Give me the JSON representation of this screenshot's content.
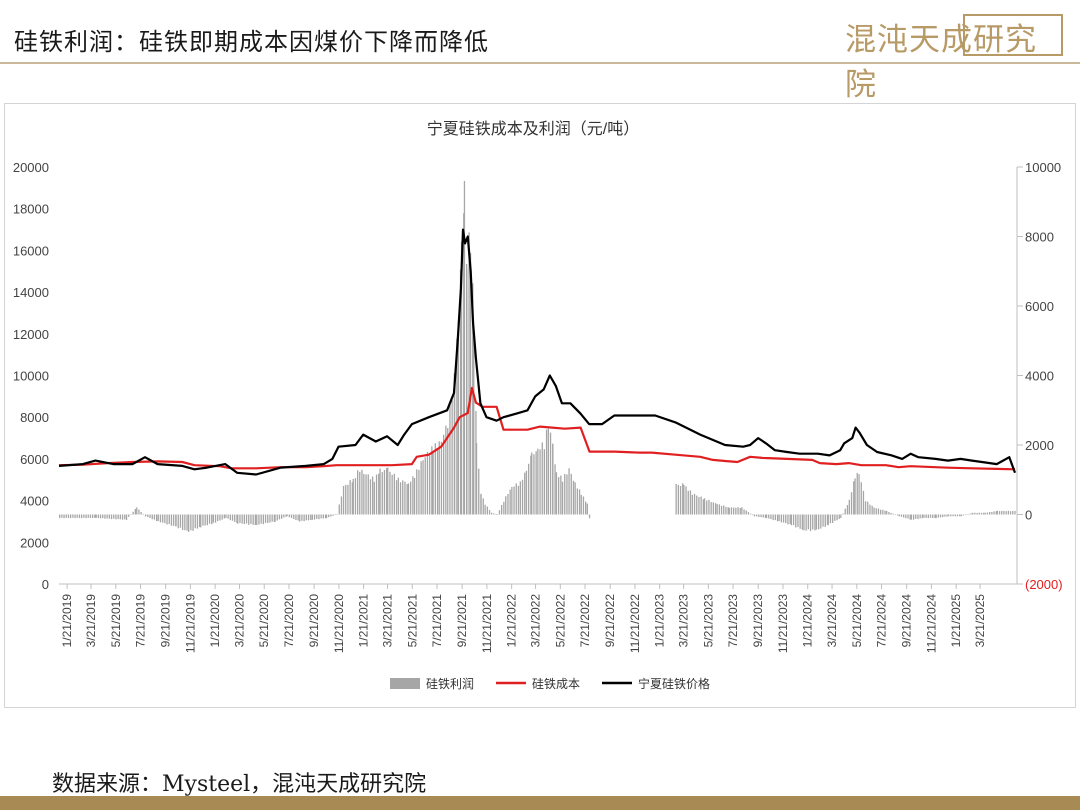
{
  "header": {
    "title": "硅铁利润：硅铁即期成本因煤价下降而降低"
  },
  "logo": {
    "text": "混沌天成研究院"
  },
  "footer": {
    "source": "数据来源：Mysteel，混沌天成研究院"
  },
  "colors": {
    "profit": "#a6a6a6",
    "cost": "#e02020",
    "price": "#000000",
    "brand": "#b89a67"
  },
  "chart_data": {
    "type": "bar+line",
    "title": "宁夏硅铁成本及利润（元/吨）",
    "x_tick_labels": [
      "1/21/2019",
      "3/21/2019",
      "5/21/2019",
      "7/21/2019",
      "9/21/2019",
      "11/21/2019",
      "1/21/2020",
      "3/21/2020",
      "5/21/2020",
      "7/21/2020",
      "9/21/2020",
      "11/21/2020",
      "1/21/2021",
      "3/21/2021",
      "5/21/2021",
      "7/21/2021",
      "9/21/2021",
      "11/21/2021",
      "1/21/2022",
      "3/21/2022",
      "5/21/2022",
      "7/21/2022",
      "9/21/2022",
      "11/21/2022",
      "1/21/2023",
      "3/21/2023",
      "5/21/2023",
      "7/21/2023",
      "9/21/2023",
      "11/21/2023",
      "1/21/2024",
      "3/21/2024",
      "5/21/2024",
      "7/21/2024",
      "9/21/2024",
      "11/21/2024",
      "1/21/2025",
      "3/21/2025"
    ],
    "x_range": [
      "2019-01-01",
      "2025-06-20"
    ],
    "y_left": {
      "min": 0,
      "max": 20000,
      "ticks": [
        "0",
        "2000",
        "4000",
        "6000",
        "8000",
        "10000",
        "12000",
        "14000",
        "16000",
        "18000",
        "20000"
      ]
    },
    "y_right": {
      "min": -2000,
      "max": 10000,
      "ticks": [
        "(2000)",
        "0",
        "2000",
        "4000",
        "6000",
        "8000",
        "10000"
      ]
    },
    "series": [
      {
        "name": "硅铁利润",
        "kind": "bar",
        "axis": "right",
        "color": "#a6a6a6",
        "points": [
          [
            "2019-01-01",
            -100
          ],
          [
            "2019-04-01",
            -100
          ],
          [
            "2019-06-15",
            -150
          ],
          [
            "2019-07-10",
            200
          ],
          [
            "2019-08-01",
            -50
          ],
          [
            "2019-09-01",
            -200
          ],
          [
            "2019-10-15",
            -350
          ],
          [
            "2019-11-15",
            -500
          ],
          [
            "2019-12-15",
            -350
          ],
          [
            "2020-01-15",
            -250
          ],
          [
            "2020-02-15",
            -100
          ],
          [
            "2020-03-15",
            -250
          ],
          [
            "2020-05-01",
            -300
          ],
          [
            "2020-06-15",
            -200
          ],
          [
            "2020-07-15",
            -50
          ],
          [
            "2020-08-15",
            -200
          ],
          [
            "2020-09-15",
            -150
          ],
          [
            "2020-10-20",
            -100
          ],
          [
            "2020-11-15",
            0
          ],
          [
            "2020-12-01",
            800
          ],
          [
            "2020-12-25",
            1000
          ],
          [
            "2021-01-10",
            1300
          ],
          [
            "2021-01-20",
            1200
          ],
          [
            "2021-02-15",
            1000
          ],
          [
            "2021-03-01",
            1250
          ],
          [
            "2021-03-20",
            1300
          ],
          [
            "2021-04-15",
            1000
          ],
          [
            "2021-05-10",
            900
          ],
          [
            "2021-05-25",
            1100
          ],
          [
            "2021-06-15",
            1600
          ],
          [
            "2021-07-10",
            1900
          ],
          [
            "2021-07-25",
            2000
          ],
          [
            "2021-08-15",
            2600
          ],
          [
            "2021-09-01",
            4000
          ],
          [
            "2021-09-10",
            5500
          ],
          [
            "2021-09-18",
            7500
          ],
          [
            "2021-09-25",
            9200
          ],
          [
            "2021-10-01",
            7500
          ],
          [
            "2021-10-10",
            8000
          ],
          [
            "2021-10-18",
            5600
          ],
          [
            "2021-10-25",
            2000
          ],
          [
            "2021-11-05",
            600
          ],
          [
            "2021-11-15",
            300
          ],
          [
            "2021-12-01",
            50
          ],
          [
            "2021-12-15",
            0
          ],
          [
            "2022-01-05",
            500
          ],
          [
            "2022-01-20",
            800
          ],
          [
            "2022-02-10",
            900
          ],
          [
            "2022-02-25",
            1300
          ],
          [
            "2022-03-10",
            1700
          ],
          [
            "2022-03-25",
            1900
          ],
          [
            "2022-04-10",
            2000
          ],
          [
            "2022-04-20",
            2600
          ],
          [
            "2022-05-01",
            2000
          ],
          [
            "2022-05-10",
            1200
          ],
          [
            "2022-05-25",
            1000
          ],
          [
            "2022-06-10",
            1300
          ],
          [
            "2022-06-25",
            900
          ],
          [
            "2022-07-10",
            600
          ],
          [
            "2022-07-25",
            300
          ],
          [
            "2022-07-31",
            -150
          ],
          [
            "2023-03-01",
            850
          ],
          [
            "2023-03-20",
            850
          ],
          [
            "2023-04-10",
            600
          ],
          [
            "2023-05-10",
            450
          ],
          [
            "2023-06-10",
            300
          ],
          [
            "2023-07-10",
            200
          ],
          [
            "2023-08-10",
            200
          ],
          [
            "2023-09-10",
            -50
          ],
          [
            "2023-10-10",
            -100
          ],
          [
            "2023-11-10",
            -200
          ],
          [
            "2023-12-10",
            -300
          ],
          [
            "2024-01-10",
            -450
          ],
          [
            "2024-02-10",
            -450
          ],
          [
            "2024-03-10",
            -300
          ],
          [
            "2024-04-10",
            -100
          ],
          [
            "2024-05-01",
            400
          ],
          [
            "2024-05-15",
            1100
          ],
          [
            "2024-05-25",
            1200
          ],
          [
            "2024-06-10",
            400
          ],
          [
            "2024-07-01",
            200
          ],
          [
            "2024-08-01",
            100
          ],
          [
            "2024-09-01",
            -50
          ],
          [
            "2024-10-01",
            -150
          ],
          [
            "2024-11-01",
            -100
          ],
          [
            "2024-12-01",
            -100
          ],
          [
            "2025-01-01",
            -50
          ],
          [
            "2025-02-01",
            -50
          ],
          [
            "2025-03-01",
            50
          ],
          [
            "2025-04-01",
            50
          ],
          [
            "2025-05-01",
            100
          ],
          [
            "2025-06-15",
            100
          ]
        ]
      },
      {
        "name": "硅铁成本",
        "kind": "line",
        "axis": "left",
        "color": "#e02020",
        "points": [
          [
            "2019-01-01",
            5700
          ],
          [
            "2019-03-01",
            5720
          ],
          [
            "2019-05-01",
            5800
          ],
          [
            "2019-07-01",
            5850
          ],
          [
            "2019-09-01",
            5880
          ],
          [
            "2019-11-01",
            5850
          ],
          [
            "2019-12-01",
            5700
          ],
          [
            "2020-02-01",
            5650
          ],
          [
            "2020-03-01",
            5550
          ],
          [
            "2020-05-01",
            5550
          ],
          [
            "2020-07-01",
            5600
          ],
          [
            "2020-09-01",
            5600
          ],
          [
            "2020-10-15",
            5650
          ],
          [
            "2020-11-15",
            5700
          ],
          [
            "2021-01-01",
            5700
          ],
          [
            "2021-04-01",
            5700
          ],
          [
            "2021-05-20",
            5750
          ],
          [
            "2021-06-01",
            6100
          ],
          [
            "2021-07-01",
            6200
          ],
          [
            "2021-08-01",
            6600
          ],
          [
            "2021-09-01",
            7500
          ],
          [
            "2021-09-15",
            8000
          ],
          [
            "2021-10-05",
            8200
          ],
          [
            "2021-10-15",
            9400
          ],
          [
            "2021-10-25",
            8700
          ],
          [
            "2021-11-10",
            8500
          ],
          [
            "2021-12-15",
            8500
          ],
          [
            "2022-01-01",
            7400
          ],
          [
            "2022-03-01",
            7400
          ],
          [
            "2022-04-01",
            7550
          ],
          [
            "2022-05-01",
            7500
          ],
          [
            "2022-06-01",
            7450
          ],
          [
            "2022-07-10",
            7500
          ],
          [
            "2022-08-01",
            6350
          ],
          [
            "2022-10-01",
            6350
          ],
          [
            "2022-12-01",
            6300
          ],
          [
            "2023-01-01",
            6300
          ],
          [
            "2023-03-01",
            6200
          ],
          [
            "2023-05-01",
            6100
          ],
          [
            "2023-06-01",
            5950
          ],
          [
            "2023-07-01",
            5900
          ],
          [
            "2023-08-01",
            5850
          ],
          [
            "2023-09-01",
            6100
          ],
          [
            "2023-10-01",
            6050
          ],
          [
            "2023-12-01",
            6000
          ],
          [
            "2024-02-01",
            5950
          ],
          [
            "2024-02-20",
            5800
          ],
          [
            "2024-04-01",
            5750
          ],
          [
            "2024-05-01",
            5800
          ],
          [
            "2024-06-01",
            5700
          ],
          [
            "2024-07-01",
            5700
          ],
          [
            "2024-08-01",
            5700
          ],
          [
            "2024-09-01",
            5600
          ],
          [
            "2024-10-01",
            5650
          ],
          [
            "2024-12-01",
            5600
          ],
          [
            "2025-01-01",
            5580
          ],
          [
            "2025-03-01",
            5550
          ],
          [
            "2025-05-01",
            5520
          ],
          [
            "2025-06-15",
            5500
          ]
        ]
      },
      {
        "name": "宁夏硅铁价格",
        "kind": "line",
        "axis": "right",
        "color": "#000000",
        "points": [
          [
            "2019-01-01",
            1400
          ],
          [
            "2019-03-01",
            1450
          ],
          [
            "2019-04-01",
            1550
          ],
          [
            "2019-05-15",
            1450
          ],
          [
            "2019-07-01",
            1450
          ],
          [
            "2019-08-01",
            1650
          ],
          [
            "2019-09-01",
            1450
          ],
          [
            "2019-11-01",
            1400
          ],
          [
            "2019-12-01",
            1300
          ],
          [
            "2020-01-01",
            1350
          ],
          [
            "2020-02-15",
            1450
          ],
          [
            "2020-03-15",
            1200
          ],
          [
            "2020-05-01",
            1150
          ],
          [
            "2020-07-01",
            1350
          ],
          [
            "2020-09-01",
            1400
          ],
          [
            "2020-10-15",
            1450
          ],
          [
            "2020-11-05",
            1600
          ],
          [
            "2020-11-20",
            1950
          ],
          [
            "2021-01-01",
            2000
          ],
          [
            "2021-01-20",
            2300
          ],
          [
            "2021-02-20",
            2100
          ],
          [
            "2021-03-20",
            2250
          ],
          [
            "2021-04-15",
            2000
          ],
          [
            "2021-05-01",
            2300
          ],
          [
            "2021-05-20",
            2600
          ],
          [
            "2021-07-01",
            2800
          ],
          [
            "2021-08-15",
            3000
          ],
          [
            "2021-09-01",
            3500
          ],
          [
            "2021-09-10",
            5000
          ],
          [
            "2021-09-18",
            6500
          ],
          [
            "2021-09-23",
            8200
          ],
          [
            "2021-09-28",
            7800
          ],
          [
            "2021-10-05",
            8000
          ],
          [
            "2021-10-12",
            7000
          ],
          [
            "2021-10-18",
            5500
          ],
          [
            "2021-10-25",
            4500
          ],
          [
            "2021-11-05",
            3200
          ],
          [
            "2021-11-20",
            2800
          ],
          [
            "2021-12-15",
            2700
          ],
          [
            "2022-01-01",
            2800
          ],
          [
            "2022-02-01",
            2900
          ],
          [
            "2022-03-01",
            3000
          ],
          [
            "2022-03-20",
            3400
          ],
          [
            "2022-04-10",
            3600
          ],
          [
            "2022-04-25",
            4000
          ],
          [
            "2022-05-10",
            3700
          ],
          [
            "2022-05-25",
            3200
          ],
          [
            "2022-06-15",
            3200
          ],
          [
            "2022-07-10",
            2900
          ],
          [
            "2022-07-31",
            2600
          ],
          [
            "2022-09-01",
            2600
          ],
          [
            "2022-10-01",
            2850
          ],
          [
            "2022-12-01",
            2850
          ],
          [
            "2023-01-10",
            2850
          ],
          [
            "2023-03-01",
            2650
          ],
          [
            "2023-05-01",
            2300
          ],
          [
            "2023-07-01",
            2000
          ],
          [
            "2023-08-15",
            1950
          ],
          [
            "2023-09-01",
            2000
          ],
          [
            "2023-09-21",
            2200
          ],
          [
            "2023-10-10",
            2050
          ],
          [
            "2023-11-01",
            1850
          ],
          [
            "2023-12-01",
            1800
          ],
          [
            "2024-01-01",
            1750
          ],
          [
            "2024-02-15",
            1750
          ],
          [
            "2024-03-15",
            1700
          ],
          [
            "2024-04-10",
            1850
          ],
          [
            "2024-04-20",
            2050
          ],
          [
            "2024-05-10",
            2200
          ],
          [
            "2024-05-18",
            2500
          ],
          [
            "2024-05-28",
            2350
          ],
          [
            "2024-06-15",
            2000
          ],
          [
            "2024-07-10",
            1800
          ],
          [
            "2024-08-15",
            1700
          ],
          [
            "2024-09-10",
            1600
          ],
          [
            "2024-10-01",
            1750
          ],
          [
            "2024-10-20",
            1650
          ],
          [
            "2024-12-01",
            1600
          ],
          [
            "2025-01-01",
            1550
          ],
          [
            "2025-02-01",
            1600
          ],
          [
            "2025-03-01",
            1550
          ],
          [
            "2025-04-01",
            1500
          ],
          [
            "2025-05-01",
            1450
          ],
          [
            "2025-06-01",
            1650
          ],
          [
            "2025-06-15",
            1200
          ]
        ]
      }
    ],
    "legend_position": "bottom",
    "gridlines": false
  }
}
